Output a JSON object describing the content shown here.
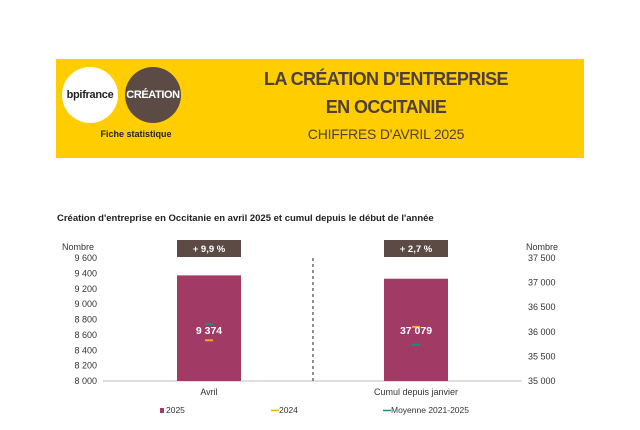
{
  "header": {
    "logo_bpifrance": "bpifrance",
    "logo_creation": "CRÉATION",
    "subtitle": "Fiche statistique",
    "title_line1": "LA CRÉATION D'ENTREPRISE",
    "title_line2": "EN OCCITANIE",
    "title_line3": "CHIFFRES D'AVRIL 2025",
    "brand_color": "#FFCD00",
    "title_color": "#4E3F39"
  },
  "chart_data": {
    "type": "bar",
    "title": "Création d'entreprise en Occitanie en avril 2025 et cumul depuis le début de l'année",
    "categories": [
      "Avril",
      "Cumul depuis janvier"
    ],
    "series": [
      {
        "name": "2025",
        "type": "bar",
        "color": "#A23A66",
        "values": [
          9374,
          37079
        ]
      },
      {
        "name": "2024",
        "type": "marker",
        "color": "#F5A623",
        "values": [
          8530,
          36100
        ]
      },
      {
        "name": "Moyenne 2021-2025",
        "type": "marker",
        "color": "#1E8C7E",
        "values": [
          8740,
          35740
        ]
      }
    ],
    "data_labels": [
      "9 374",
      "37 079"
    ],
    "change_labels": [
      "+ 9,9 %",
      "+ 2,7 %"
    ],
    "left_axis": {
      "label": "Nombre",
      "ylim": [
        8000,
        9600
      ],
      "ticks": [
        "8 000",
        "8 200",
        "8 400",
        "8 600",
        "8 800",
        "9 000",
        "9 200",
        "9 400",
        "9 600"
      ],
      "tick_values": [
        8000,
        8200,
        8400,
        8600,
        8800,
        9000,
        9200,
        9400,
        9600
      ]
    },
    "right_axis": {
      "label": "Nombre",
      "ylim": [
        35000,
        37500
      ],
      "ticks": [
        "35 000",
        "35 500",
        "36 000",
        "36 500",
        "37 000",
        "37 500"
      ],
      "tick_values": [
        35000,
        35500,
        36000,
        36500,
        37000,
        37500
      ]
    },
    "legend": [
      "2025",
      "2024",
      "Moyenne 2021-2025"
    ],
    "legend_placement": "bottom",
    "badge_color": "#5C4B44",
    "grid": false
  }
}
